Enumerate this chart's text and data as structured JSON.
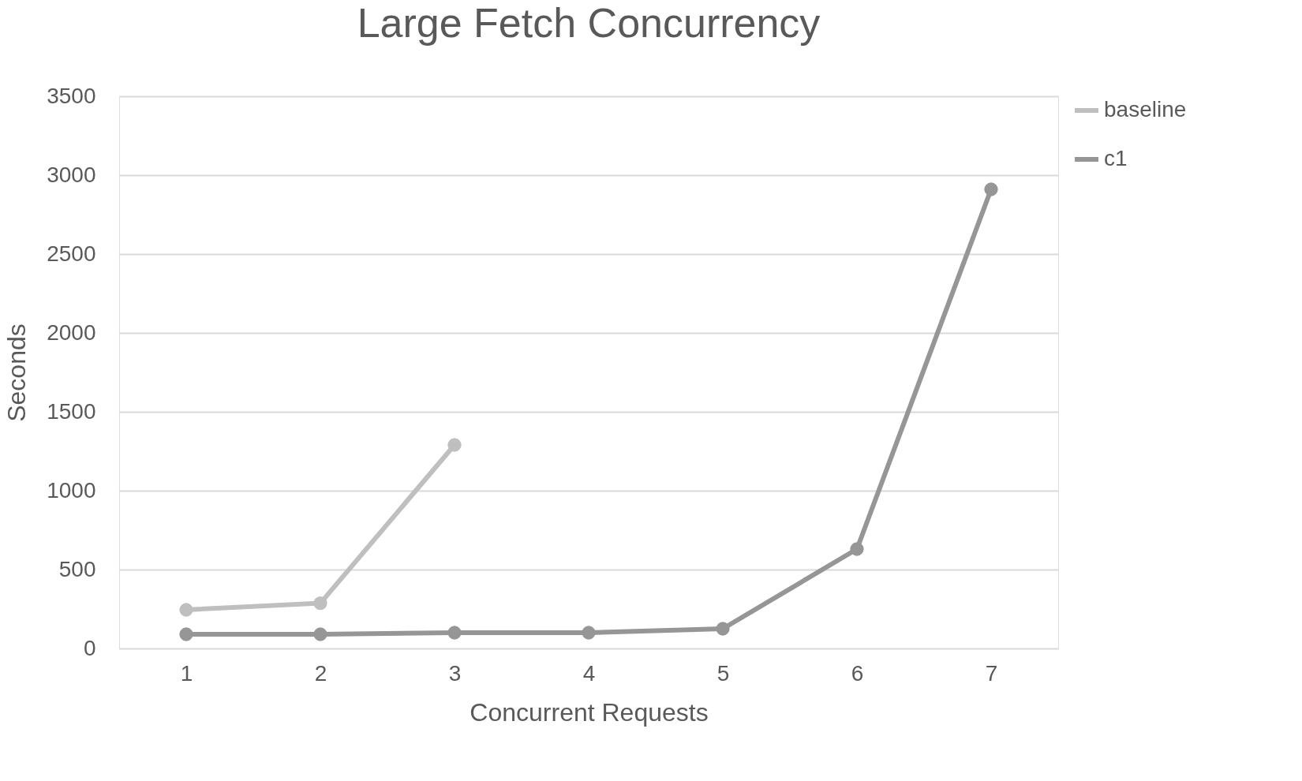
{
  "chart_data": {
    "type": "line",
    "title": "Large Fetch Concurrency",
    "xlabel": "Concurrent Requests",
    "ylabel": "Seconds",
    "categories": [
      "1",
      "2",
      "3",
      "4",
      "5",
      "6",
      "7"
    ],
    "series": [
      {
        "name": "baseline",
        "color": "#bfbfbf",
        "values": [
          245,
          287,
          1290,
          null,
          null,
          null,
          null
        ]
      },
      {
        "name": "c1",
        "color": "#969696",
        "values": [
          90,
          90,
          100,
          100,
          125,
          630,
          2910
        ]
      }
    ],
    "ylim": [
      0,
      3500
    ],
    "yticks": [
      0,
      500,
      1000,
      1500,
      2000,
      2500,
      3000,
      3500
    ],
    "grid": "y",
    "legend": "right",
    "marker": "circle",
    "line_style": "solid"
  }
}
